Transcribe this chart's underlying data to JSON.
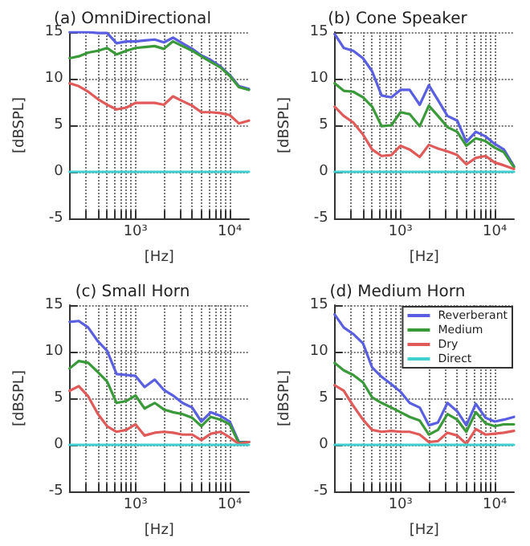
{
  "chart_data": [
    {
      "type": "line",
      "title": "(a) OmniDirectional",
      "xlabel": "[Hz]",
      "ylabel": "[dBSPL]",
      "log": "x",
      "grid": true,
      "line_style": "solid",
      "marker": "none",
      "legend": false,
      "x": [
        200,
        250,
        315,
        400,
        500,
        630,
        800,
        1000,
        1250,
        1600,
        2000,
        2500,
        3150,
        4000,
        5000,
        6300,
        8000,
        10000,
        12500,
        16000
      ],
      "xlim": [
        200,
        16000
      ],
      "xticks": [
        {
          "value": 200,
          "label": null
        },
        {
          "value": 300,
          "label": null
        },
        {
          "value": 400,
          "label": null
        },
        {
          "value": 500,
          "label": null
        },
        {
          "value": 600,
          "label": null
        },
        {
          "value": 700,
          "label": null
        },
        {
          "value": 800,
          "label": null
        },
        {
          "value": 900,
          "label": null
        },
        {
          "value": 1000,
          "label": "10³"
        },
        {
          "value": 2000,
          "label": null
        },
        {
          "value": 3000,
          "label": null
        },
        {
          "value": 4000,
          "label": null
        },
        {
          "value": 5000,
          "label": null
        },
        {
          "value": 6000,
          "label": null
        },
        {
          "value": 7000,
          "label": null
        },
        {
          "value": 8000,
          "label": null
        },
        {
          "value": 9000,
          "label": null
        },
        {
          "value": 10000,
          "label": "10⁴"
        }
      ],
      "ylim": [
        -5,
        15
      ],
      "yticks": [
        -5,
        0,
        5,
        10,
        15
      ],
      "series": [
        {
          "color": "#5a5ee0",
          "values": [
            15,
            15,
            15,
            14.9,
            14.9,
            13.8,
            14,
            14,
            14.1,
            14.2,
            13.9,
            14.4,
            13.8,
            13.2,
            12.5,
            12,
            11.3,
            10.4,
            9.2,
            8.9
          ]
        },
        {
          "color": "#3a9a3a",
          "values": [
            12.2,
            12.4,
            12.8,
            13,
            13.3,
            12.6,
            13,
            13.3,
            13.4,
            13.5,
            13.2,
            14,
            13.5,
            13,
            12.4,
            11.8,
            11.2,
            10.3,
            9.1,
            8.8
          ]
        },
        {
          "color": "#e05a5a",
          "values": [
            9.5,
            9.2,
            8.6,
            7.8,
            7.2,
            6.7,
            6.9,
            7.4,
            7.4,
            7.4,
            7.2,
            8.1,
            7.6,
            7.1,
            6.4,
            6.4,
            6.3,
            6.1,
            5.2,
            5.5
          ]
        },
        {
          "color": "#40d0d0",
          "values": [
            0,
            0,
            0,
            0,
            0,
            0,
            0,
            0,
            0,
            0,
            0,
            0,
            0,
            0,
            0,
            0,
            0,
            0,
            0,
            0
          ]
        }
      ]
    },
    {
      "type": "line",
      "title": "(b) Cone Speaker",
      "xlabel": "[Hz]",
      "ylabel": "[dBSPL]",
      "log": "x",
      "grid": true,
      "line_style": "solid",
      "marker": "none",
      "legend": false,
      "x": [
        200,
        250,
        315,
        400,
        500,
        630,
        800,
        1000,
        1250,
        1600,
        2000,
        2500,
        3150,
        4000,
        5000,
        6300,
        8000,
        10000,
        12500,
        16000
      ],
      "xlim": [
        200,
        16000
      ],
      "xticks": [
        {
          "value": 200,
          "label": null
        },
        {
          "value": 300,
          "label": null
        },
        {
          "value": 400,
          "label": null
        },
        {
          "value": 500,
          "label": null
        },
        {
          "value": 600,
          "label": null
        },
        {
          "value": 700,
          "label": null
        },
        {
          "value": 800,
          "label": null
        },
        {
          "value": 900,
          "label": null
        },
        {
          "value": 1000,
          "label": "10³"
        },
        {
          "value": 2000,
          "label": null
        },
        {
          "value": 3000,
          "label": null
        },
        {
          "value": 4000,
          "label": null
        },
        {
          "value": 5000,
          "label": null
        },
        {
          "value": 6000,
          "label": null
        },
        {
          "value": 7000,
          "label": null
        },
        {
          "value": 8000,
          "label": null
        },
        {
          "value": 9000,
          "label": null
        },
        {
          "value": 10000,
          "label": "10⁴"
        }
      ],
      "ylim": [
        -5,
        15
      ],
      "yticks": [
        -5,
        0,
        5,
        10,
        15
      ],
      "series": [
        {
          "color": "#5a5ee0",
          "values": [
            14.8,
            13.3,
            13,
            12.2,
            10.8,
            8.2,
            8,
            8.8,
            8.8,
            7.2,
            9.3,
            7.7,
            6,
            5.5,
            3.2,
            4.3,
            3.8,
            3,
            2.4,
            0.6
          ]
        },
        {
          "color": "#3a9a3a",
          "values": [
            9.5,
            8.7,
            8.6,
            8,
            7,
            4.9,
            5,
            6.4,
            6.2,
            4.9,
            7.1,
            6,
            4.8,
            4.3,
            2.8,
            3.6,
            3.3,
            2.6,
            2.1,
            0.5
          ]
        },
        {
          "color": "#e05a5a",
          "values": [
            7,
            6,
            5.3,
            4,
            2.4,
            1.7,
            1.8,
            2.8,
            2.4,
            1.6,
            2.9,
            2.5,
            2.2,
            1.8,
            0.8,
            1.5,
            1.7,
            1,
            0.7,
            0.3
          ]
        },
        {
          "color": "#40d0d0",
          "values": [
            0,
            0,
            0,
            0,
            0,
            0,
            0,
            0,
            0,
            0,
            0,
            0,
            0,
            0,
            0,
            0,
            0,
            0,
            0,
            0
          ]
        }
      ]
    },
    {
      "type": "line",
      "title": "(c) Small Horn",
      "xlabel": "[Hz]",
      "ylabel": "[dBSPL]",
      "log": "x",
      "grid": true,
      "line_style": "solid",
      "marker": "none",
      "legend": false,
      "x": [
        200,
        250,
        315,
        400,
        500,
        630,
        800,
        1000,
        1250,
        1600,
        2000,
        2500,
        3150,
        4000,
        5000,
        6300,
        8000,
        10000,
        12500,
        16000
      ],
      "xlim": [
        200,
        16000
      ],
      "xticks": [
        {
          "value": 200,
          "label": null
        },
        {
          "value": 300,
          "label": null
        },
        {
          "value": 400,
          "label": null
        },
        {
          "value": 500,
          "label": null
        },
        {
          "value": 600,
          "label": null
        },
        {
          "value": 700,
          "label": null
        },
        {
          "value": 800,
          "label": null
        },
        {
          "value": 900,
          "label": null
        },
        {
          "value": 1000,
          "label": "10³"
        },
        {
          "value": 2000,
          "label": null
        },
        {
          "value": 3000,
          "label": null
        },
        {
          "value": 4000,
          "label": null
        },
        {
          "value": 5000,
          "label": null
        },
        {
          "value": 6000,
          "label": null
        },
        {
          "value": 7000,
          "label": null
        },
        {
          "value": 8000,
          "label": null
        },
        {
          "value": 9000,
          "label": null
        },
        {
          "value": 10000,
          "label": "10⁴"
        }
      ],
      "ylim": [
        -5,
        15
      ],
      "yticks": [
        -5,
        0,
        5,
        10,
        15
      ],
      "series": [
        {
          "color": "#5a5ee0",
          "values": [
            13.2,
            13.3,
            12.6,
            11.1,
            10.1,
            7.6,
            7.5,
            7.4,
            6.2,
            7,
            5.9,
            5.3,
            4.5,
            4,
            2.5,
            3.5,
            3.1,
            2.5,
            0.3,
            0.3
          ]
        },
        {
          "color": "#3a9a3a",
          "values": [
            8.2,
            9,
            8.8,
            7.8,
            6.8,
            4.5,
            4.7,
            5.3,
            3.9,
            4.5,
            3.8,
            3.5,
            3.3,
            2.9,
            2,
            3,
            2.7,
            2.2,
            0.2,
            0.3
          ]
        },
        {
          "color": "#e05a5a",
          "values": [
            5.8,
            6.3,
            5.2,
            3.3,
            2,
            1.4,
            1.6,
            2.2,
            1,
            1.3,
            1.4,
            1.3,
            1.1,
            1.1,
            0.5,
            1.2,
            1.4,
            0.8,
            0.1,
            0.3
          ]
        },
        {
          "color": "#40d0d0",
          "values": [
            0,
            0,
            0,
            0,
            0,
            0,
            0,
            0,
            0,
            0,
            0,
            0,
            0,
            0,
            0,
            0,
            0,
            0,
            0,
            0
          ]
        }
      ]
    },
    {
      "type": "line",
      "title": "(d) Medium Horn",
      "xlabel": "[Hz]",
      "ylabel": "[dBSPL]",
      "log": "x",
      "grid": true,
      "line_style": "solid",
      "marker": "none",
      "legend": "top right",
      "x": [
        200,
        250,
        315,
        400,
        500,
        630,
        800,
        1000,
        1250,
        1600,
        2000,
        2500,
        3150,
        4000,
        5000,
        6300,
        8000,
        10000,
        12500,
        16000
      ],
      "xlim": [
        200,
        16000
      ],
      "xticks": [
        {
          "value": 200,
          "label": null
        },
        {
          "value": 300,
          "label": null
        },
        {
          "value": 400,
          "label": null
        },
        {
          "value": 500,
          "label": null
        },
        {
          "value": 600,
          "label": null
        },
        {
          "value": 700,
          "label": null
        },
        {
          "value": 800,
          "label": null
        },
        {
          "value": 900,
          "label": null
        },
        {
          "value": 1000,
          "label": "10³"
        },
        {
          "value": 2000,
          "label": null
        },
        {
          "value": 3000,
          "label": null
        },
        {
          "value": 4000,
          "label": null
        },
        {
          "value": 5000,
          "label": null
        },
        {
          "value": 6000,
          "label": null
        },
        {
          "value": 7000,
          "label": null
        },
        {
          "value": 8000,
          "label": null
        },
        {
          "value": 9000,
          "label": null
        },
        {
          "value": 10000,
          "label": "10⁴"
        }
      ],
      "ylim": [
        -5,
        15
      ],
      "yticks": [
        -5,
        0,
        5,
        10,
        15
      ],
      "series": [
        {
          "name": "Reverberant",
          "color": "#5a5ee0",
          "values": [
            14,
            12.6,
            11.9,
            10.9,
            8.3,
            7.3,
            6.5,
            5.7,
            4.5,
            4,
            2.1,
            2.4,
            4.5,
            3.6,
            2.1,
            4.4,
            2.9,
            2.5,
            2.7,
            3
          ]
        },
        {
          "name": "Medium",
          "color": "#3a9a3a",
          "values": [
            8.8,
            8,
            7.5,
            6.7,
            5.1,
            4.5,
            4,
            3.5,
            3,
            2.6,
            1.1,
            1.6,
            3.3,
            2.7,
            1.4,
            3.5,
            2.3,
            2,
            2.2,
            2.2
          ]
        },
        {
          "name": "Dry",
          "color": "#e05a5a",
          "values": [
            6.4,
            5.8,
            4.2,
            2.7,
            1.6,
            1.4,
            1.5,
            1.4,
            1.4,
            1.1,
            0.3,
            0.4,
            1.3,
            1,
            0.1,
            1.7,
            1.1,
            1.2,
            1.3,
            1.5
          ]
        },
        {
          "name": "Direct",
          "color": "#40d0d0",
          "values": [
            0,
            0,
            0,
            0,
            0,
            0,
            0,
            0,
            0,
            0,
            0,
            0,
            0,
            0,
            0,
            0,
            0,
            0,
            0,
            0
          ]
        }
      ]
    }
  ]
}
